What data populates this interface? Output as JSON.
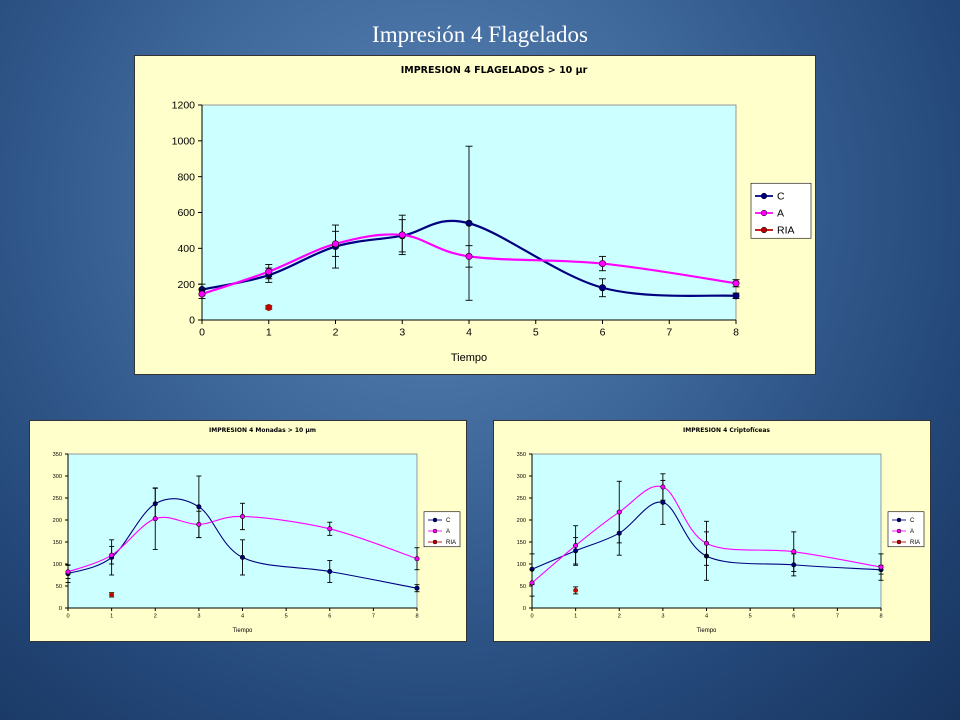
{
  "slide": {
    "title": "Impresión 4 Flagelados"
  },
  "chart_data": [
    {
      "type": "line",
      "title": "IMPRESION 4 FLAGELADOS > 10 µr",
      "xlabel": "Tiempo",
      "ylabel": "",
      "xlim": [
        0,
        8
      ],
      "ylim": [
        0,
        1200
      ],
      "xticks": [
        0,
        1,
        2,
        3,
        4,
        5,
        6,
        7,
        8
      ],
      "yticks": [
        0,
        200,
        400,
        600,
        800,
        1000,
        1200
      ],
      "grid": false,
      "legend": "right",
      "series": [
        {
          "name": "C",
          "color": "#000080",
          "x": [
            0,
            1,
            2,
            3,
            4,
            6,
            8
          ],
          "y": [
            170,
            250,
            410,
            470,
            540,
            180,
            135
          ],
          "err": [
            30,
            40,
            120,
            90,
            430,
            50,
            15
          ]
        },
        {
          "name": "A",
          "color": "#ff00ff",
          "x": [
            0,
            1,
            2,
            3,
            4,
            6,
            8
          ],
          "y": [
            145,
            270,
            425,
            475,
            355,
            315,
            205
          ],
          "err": [
            25,
            40,
            70,
            110,
            60,
            40,
            20
          ]
        },
        {
          "name": "RIA",
          "color": "#c00000",
          "x": [
            1
          ],
          "y": [
            70
          ],
          "err": [
            10
          ]
        }
      ]
    },
    {
      "type": "line",
      "title": "IMPRESION 4 Monadas > 10 µm",
      "xlabel": "Tiempo",
      "ylabel": "",
      "xlim": [
        0,
        8
      ],
      "ylim": [
        0,
        350
      ],
      "xticks": [
        0,
        1,
        2,
        3,
        4,
        5,
        6,
        7,
        8
      ],
      "yticks": [
        0,
        50,
        100,
        150,
        200,
        250,
        300,
        350
      ],
      "grid": false,
      "legend": "right",
      "series": [
        {
          "name": "C",
          "color": "#000080",
          "x": [
            0,
            1,
            2,
            3,
            4,
            6,
            8
          ],
          "y": [
            78,
            115,
            237,
            230,
            115,
            83,
            45
          ],
          "err": [
            20,
            40,
            35,
            70,
            40,
            25,
            8
          ]
        },
        {
          "name": "A",
          "color": "#ff00ff",
          "x": [
            0,
            1,
            2,
            3,
            4,
            6,
            8
          ],
          "y": [
            82,
            120,
            203,
            190,
            208,
            180,
            112
          ],
          "err": [
            15,
            20,
            70,
            30,
            30,
            15,
            25
          ]
        },
        {
          "name": "RIA",
          "color": "#c00000",
          "x": [
            1
          ],
          "y": [
            30
          ],
          "err": [
            5
          ]
        }
      ]
    },
    {
      "type": "line",
      "title": "IMPRESION 4 Criptofíceas",
      "xlabel": "Tiempo",
      "ylabel": "",
      "xlim": [
        0,
        8
      ],
      "ylim": [
        0,
        350
      ],
      "xticks": [
        0,
        1,
        2,
        3,
        4,
        5,
        6,
        7,
        8
      ],
      "yticks": [
        0,
        50,
        100,
        150,
        200,
        250,
        300,
        350
      ],
      "grid": false,
      "legend": "right",
      "series": [
        {
          "name": "C",
          "color": "#000080",
          "x": [
            0,
            1,
            2,
            3,
            4,
            6,
            8
          ],
          "y": [
            88,
            130,
            170,
            240,
            118,
            98,
            87
          ],
          "err": [
            35,
            30,
            50,
            50,
            55,
            25,
            10
          ]
        },
        {
          "name": "A",
          "color": "#ff00ff",
          "x": [
            0,
            1,
            2,
            3,
            4,
            6,
            8
          ],
          "y": [
            57,
            142,
            218,
            275,
            147,
            128,
            93
          ],
          "err": [
            30,
            45,
            70,
            30,
            50,
            45,
            30
          ]
        },
        {
          "name": "RIA",
          "color": "#c00000",
          "x": [
            1
          ],
          "y": [
            40
          ],
          "err": [
            8
          ]
        }
      ]
    }
  ]
}
